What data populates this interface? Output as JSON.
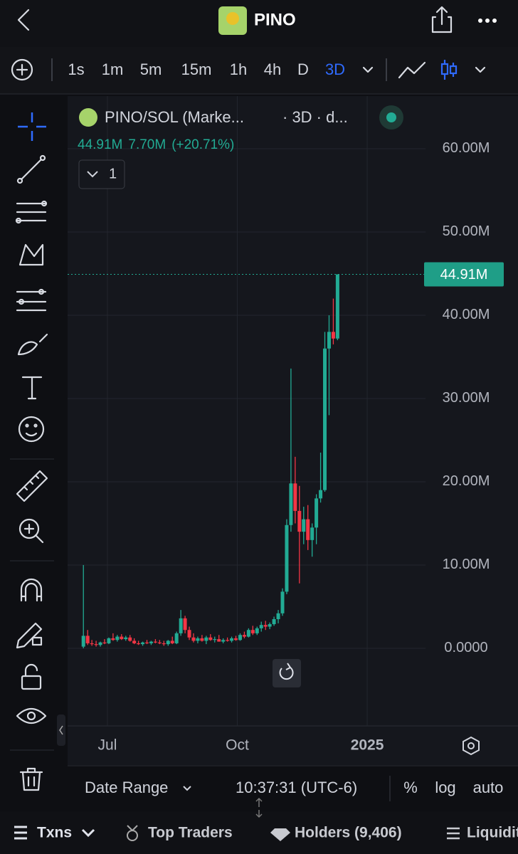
{
  "header": {
    "title": "PINO"
  },
  "timeframes": [
    "1s",
    "1m",
    "5m",
    "15m",
    "1h",
    "4h",
    "D",
    "3D"
  ],
  "active_timeframe": 7,
  "chart_data": {
    "type": "candlestick",
    "symbol": "PINO/SOL (Marke...",
    "interval": "· 3D · d...",
    "legend_values": [
      "44.91M",
      "7.70M",
      "(+20.71%)"
    ],
    "indicator_count": 1,
    "up_color": "#22ab94",
    "down_color": "#f23645",
    "grid": true,
    "last_price": 44.91,
    "last_price_label": "44.91M",
    "x": [
      -17,
      -14,
      -11,
      -8,
      -5,
      -2,
      1,
      4,
      7,
      10,
      13,
      16,
      19,
      22,
      25,
      28,
      31,
      34,
      37,
      40,
      43,
      46,
      49,
      52,
      55,
      58,
      61,
      64,
      67,
      70,
      73,
      76,
      79,
      82,
      85,
      88,
      91,
      94,
      97,
      100,
      103,
      106,
      109,
      112,
      115,
      118,
      121,
      124,
      127,
      130,
      133,
      136,
      139,
      142,
      145,
      148,
      151,
      154,
      157,
      160,
      163
    ],
    "open": [
      0.2,
      1.5,
      0.6,
      0.5,
      0.4,
      0.7,
      0.6,
      1.2,
      1.0,
      1.4,
      1.1,
      1.3,
      0.9,
      0.6,
      0.5,
      0.7,
      0.6,
      0.8,
      0.7,
      0.6,
      0.5,
      0.9,
      0.6,
      1.8,
      3.6,
      2.2,
      1.3,
      0.9,
      1.2,
      0.9,
      1.3,
      1.0,
      1.1,
      0.8,
      1.0,
      0.9,
      1.2,
      1.0,
      1.6,
      1.4,
      2.2,
      1.8,
      2.4,
      2.8,
      2.6,
      2.9,
      3.5,
      4.2,
      6.8,
      14.8,
      19.8,
      16.5,
      14.0,
      15.5,
      13.0,
      14.5,
      18.0,
      19.0,
      36.0,
      38.0,
      37.2
    ],
    "high": [
      10.0,
      2.2,
      1.0,
      0.9,
      0.8,
      1.1,
      1.3,
      1.8,
      1.6,
      1.7,
      1.5,
      1.6,
      1.2,
      0.9,
      0.8,
      1.0,
      0.9,
      1.1,
      1.0,
      0.9,
      1.0,
      1.4,
      2.0,
      4.6,
      3.9,
      2.6,
      1.8,
      1.4,
      1.6,
      1.5,
      1.7,
      1.4,
      1.6,
      1.2,
      1.3,
      1.4,
      1.5,
      1.8,
      2.0,
      2.4,
      2.7,
      2.6,
      3.2,
      3.3,
      3.1,
      3.8,
      4.6,
      7.2,
      15.5,
      33.6,
      23.0,
      19.5,
      17.0,
      17.2,
      15.0,
      18.5,
      23.5,
      38.0,
      40.0,
      42.0,
      44.91
    ],
    "low": [
      0.0,
      0.4,
      0.3,
      0.2,
      0.2,
      0.5,
      0.5,
      0.9,
      0.8,
      1.0,
      0.9,
      0.8,
      0.5,
      0.4,
      0.3,
      0.5,
      0.4,
      0.6,
      0.5,
      0.3,
      0.3,
      0.5,
      0.5,
      1.5,
      1.8,
      1.0,
      0.7,
      0.6,
      0.8,
      0.5,
      0.9,
      0.7,
      0.8,
      0.6,
      0.8,
      0.7,
      0.9,
      0.9,
      1.2,
      1.3,
      1.6,
      1.6,
      2.0,
      2.2,
      2.3,
      2.7,
      3.0,
      3.9,
      6.5,
      14.0,
      15.0,
      7.8,
      12.5,
      11.8,
      11.0,
      12.5,
      17.5,
      18.8,
      28.0,
      36.5,
      37.0
    ],
    "close": [
      1.5,
      0.6,
      0.5,
      0.4,
      0.7,
      0.6,
      1.2,
      1.0,
      1.4,
      1.1,
      1.3,
      0.9,
      0.6,
      0.5,
      0.7,
      0.6,
      0.8,
      0.7,
      0.6,
      0.5,
      0.9,
      0.6,
      1.8,
      3.6,
      2.2,
      1.3,
      0.9,
      1.2,
      0.9,
      1.3,
      1.0,
      1.1,
      0.8,
      1.0,
      0.9,
      1.2,
      1.0,
      1.6,
      1.4,
      2.2,
      1.8,
      2.4,
      2.8,
      2.6,
      2.9,
      3.5,
      4.2,
      6.8,
      14.8,
      19.8,
      16.5,
      14.0,
      15.5,
      13.0,
      14.5,
      18.0,
      19.0,
      36.0,
      38.0,
      37.2,
      44.91
    ],
    "xlim": [
      -28.2,
      225.3
    ],
    "xticks": [
      {
        "value": 0,
        "label": "Jul"
      },
      {
        "value": 92,
        "label": "Oct"
      },
      {
        "value": 184,
        "label": "2025"
      }
    ],
    "ylim": [
      -9.32,
      66.32
    ],
    "yticks": [
      {
        "value": 0,
        "label": "0.0000"
      },
      {
        "value": 10,
        "label": "10.00M"
      },
      {
        "value": 20,
        "label": "20.00M"
      },
      {
        "value": 30,
        "label": "30.00M"
      },
      {
        "value": 40,
        "label": "40.00M"
      },
      {
        "value": 50,
        "label": "50.00M"
      },
      {
        "value": 60,
        "label": "60.00M"
      }
    ]
  },
  "footer": {
    "date_range": "Date Range",
    "time": "10:37:31 (UTC-6)",
    "options": [
      "%",
      "log",
      "auto"
    ]
  },
  "tabs": [
    "Txns",
    "Top Traders",
    "Holders (9,406)",
    "Liquidity"
  ]
}
